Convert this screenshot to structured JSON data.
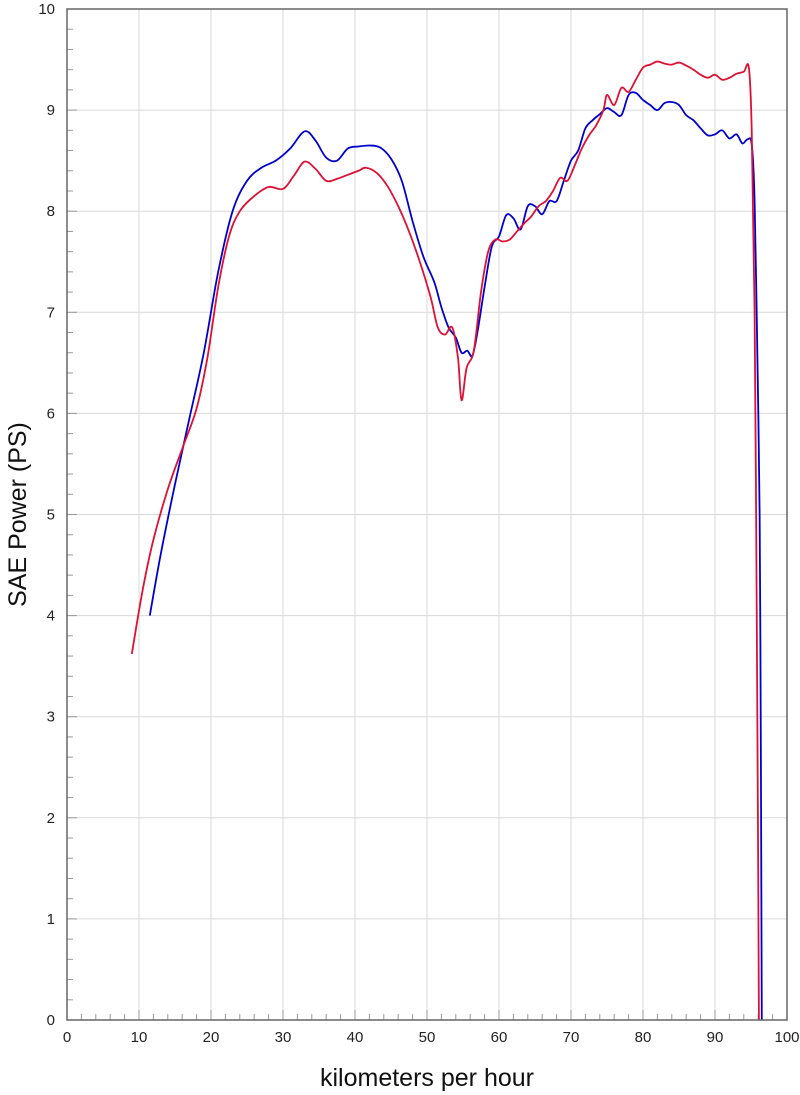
{
  "chart_data": {
    "type": "line",
    "title": "",
    "xlabel": "kilometers per hour",
    "ylabel": "SAE Power (PS)",
    "xlim": [
      0,
      100
    ],
    "ylim": [
      0,
      10
    ],
    "xticks": [
      0,
      10,
      20,
      30,
      40,
      50,
      60,
      70,
      80,
      90,
      100
    ],
    "yticks": [
      0,
      1,
      2,
      3,
      4,
      5,
      6,
      7,
      8,
      9,
      10
    ],
    "grid": true,
    "legend": "none",
    "series": [
      {
        "color": "#0000cc",
        "points": [
          [
            11.5,
            4.0
          ],
          [
            13,
            4.6
          ],
          [
            15,
            5.3
          ],
          [
            17,
            5.95
          ],
          [
            19,
            6.6
          ],
          [
            21,
            7.4
          ],
          [
            23,
            8.0
          ],
          [
            25,
            8.3
          ],
          [
            27,
            8.43
          ],
          [
            29,
            8.5
          ],
          [
            31,
            8.62
          ],
          [
            33,
            8.79
          ],
          [
            34.5,
            8.7
          ],
          [
            36,
            8.53
          ],
          [
            37.5,
            8.5
          ],
          [
            39,
            8.62
          ],
          [
            40.5,
            8.64
          ],
          [
            42,
            8.65
          ],
          [
            43.5,
            8.63
          ],
          [
            45,
            8.52
          ],
          [
            46.5,
            8.3
          ],
          [
            48,
            7.9
          ],
          [
            49.5,
            7.55
          ],
          [
            51,
            7.3
          ],
          [
            52,
            7.05
          ],
          [
            53,
            6.85
          ],
          [
            54,
            6.75
          ],
          [
            54.8,
            6.6
          ],
          [
            55.6,
            6.62
          ],
          [
            56.3,
            6.57
          ],
          [
            57,
            6.8
          ],
          [
            58,
            7.25
          ],
          [
            59,
            7.65
          ],
          [
            60,
            7.75
          ],
          [
            61,
            7.96
          ],
          [
            62,
            7.93
          ],
          [
            63,
            7.82
          ],
          [
            64,
            8.05
          ],
          [
            65,
            8.05
          ],
          [
            66,
            7.97
          ],
          [
            67,
            8.1
          ],
          [
            68,
            8.1
          ],
          [
            69,
            8.3
          ],
          [
            70,
            8.5
          ],
          [
            71,
            8.6
          ],
          [
            72,
            8.82
          ],
          [
            73,
            8.9
          ],
          [
            74,
            8.96
          ],
          [
            75,
            9.02
          ],
          [
            76,
            8.98
          ],
          [
            77,
            8.95
          ],
          [
            78,
            9.15
          ],
          [
            79,
            9.17
          ],
          [
            80,
            9.1
          ],
          [
            81,
            9.05
          ],
          [
            82,
            9.0
          ],
          [
            83,
            9.07
          ],
          [
            84,
            9.08
          ],
          [
            85,
            9.05
          ],
          [
            86,
            8.95
          ],
          [
            87,
            8.9
          ],
          [
            88,
            8.82
          ],
          [
            89,
            8.75
          ],
          [
            90,
            8.76
          ],
          [
            91,
            8.8
          ],
          [
            92,
            8.72
          ],
          [
            93,
            8.76
          ],
          [
            93.8,
            8.67
          ],
          [
            94.5,
            8.71
          ],
          [
            95.1,
            8.66
          ],
          [
            95.5,
            8.1
          ],
          [
            95.9,
            6.5
          ],
          [
            96.2,
            5.0
          ],
          [
            96.35,
            3.0
          ],
          [
            96.45,
            1.0
          ],
          [
            96.5,
            0.0
          ]
        ]
      },
      {
        "color": "#dd1133",
        "points": [
          [
            9,
            3.62
          ],
          [
            10.5,
            4.25
          ],
          [
            12,
            4.75
          ],
          [
            14,
            5.25
          ],
          [
            16,
            5.65
          ],
          [
            18,
            6.05
          ],
          [
            19.5,
            6.55
          ],
          [
            21,
            7.25
          ],
          [
            22.5,
            7.75
          ],
          [
            24,
            8.0
          ],
          [
            26,
            8.15
          ],
          [
            28,
            8.24
          ],
          [
            30,
            8.22
          ],
          [
            31.5,
            8.35
          ],
          [
            33,
            8.49
          ],
          [
            34.5,
            8.42
          ],
          [
            36,
            8.3
          ],
          [
            37.5,
            8.32
          ],
          [
            39,
            8.36
          ],
          [
            40.5,
            8.4
          ],
          [
            41.5,
            8.43
          ],
          [
            43,
            8.38
          ],
          [
            44.5,
            8.25
          ],
          [
            46,
            8.05
          ],
          [
            47.5,
            7.8
          ],
          [
            49,
            7.5
          ],
          [
            50.5,
            7.15
          ],
          [
            51.5,
            6.85
          ],
          [
            52.5,
            6.78
          ],
          [
            53.5,
            6.85
          ],
          [
            54.3,
            6.55
          ],
          [
            54.8,
            6.13
          ],
          [
            55.5,
            6.45
          ],
          [
            56.5,
            6.62
          ],
          [
            57.5,
            7.2
          ],
          [
            58.5,
            7.6
          ],
          [
            59.5,
            7.72
          ],
          [
            60.5,
            7.7
          ],
          [
            61.5,
            7.72
          ],
          [
            62.5,
            7.8
          ],
          [
            63.5,
            7.88
          ],
          [
            64.5,
            7.95
          ],
          [
            65.5,
            8.05
          ],
          [
            66.5,
            8.1
          ],
          [
            67.5,
            8.2
          ],
          [
            68.5,
            8.33
          ],
          [
            69.5,
            8.3
          ],
          [
            70.5,
            8.45
          ],
          [
            71.5,
            8.62
          ],
          [
            72.5,
            8.75
          ],
          [
            73.5,
            8.85
          ],
          [
            74.5,
            9.0
          ],
          [
            75,
            9.15
          ],
          [
            76,
            9.05
          ],
          [
            77,
            9.22
          ],
          [
            78,
            9.18
          ],
          [
            79,
            9.3
          ],
          [
            80,
            9.42
          ],
          [
            81,
            9.45
          ],
          [
            82,
            9.48
          ],
          [
            83,
            9.46
          ],
          [
            84,
            9.45
          ],
          [
            85,
            9.47
          ],
          [
            86,
            9.44
          ],
          [
            87,
            9.4
          ],
          [
            88,
            9.35
          ],
          [
            89,
            9.32
          ],
          [
            90,
            9.35
          ],
          [
            91,
            9.3
          ],
          [
            92,
            9.32
          ],
          [
            93,
            9.36
          ],
          [
            94,
            9.38
          ],
          [
            94.7,
            9.42
          ],
          [
            95.1,
            8.8
          ],
          [
            95.5,
            7.0
          ],
          [
            95.8,
            4.0
          ],
          [
            96.0,
            1.5
          ],
          [
            96.1,
            0.0
          ]
        ]
      }
    ]
  }
}
